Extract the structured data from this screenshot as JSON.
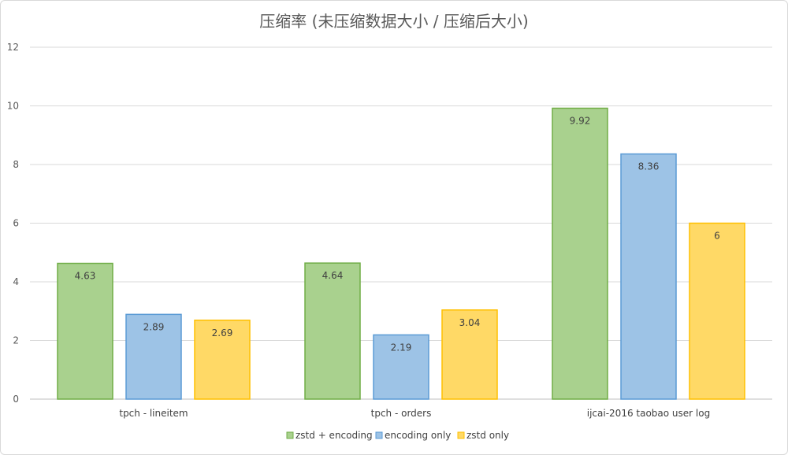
{
  "chart_data": {
    "type": "bar",
    "title": "压缩率 (未压缩数据大小 / 压缩后大小)",
    "categories": [
      "tpch - lineitem",
      "tpch - orders",
      "ijcai-2016  taobao  user log"
    ],
    "series": [
      {
        "name": "zstd + encoding",
        "values": [
          4.63,
          4.64,
          9.92
        ],
        "labels": [
          "4.63",
          "4.64",
          "9.92"
        ],
        "fill": "#a9d18e",
        "stroke": "#70ad47"
      },
      {
        "name": "encoding only",
        "values": [
          2.89,
          2.19,
          8.36
        ],
        "labels": [
          "2.89",
          "2.19",
          "8.36"
        ],
        "fill": "#9dc3e6",
        "stroke": "#5b9bd5"
      },
      {
        "name": "zstd only",
        "values": [
          2.69,
          3.04,
          6
        ],
        "labels": [
          "2.69",
          "3.04",
          "6"
        ],
        "fill": "#ffd966",
        "stroke": "#ffc000"
      }
    ],
    "ylim": [
      0,
      12
    ],
    "yticks": [
      "0",
      "2",
      "4",
      "6",
      "8",
      "10",
      "12"
    ],
    "grid": true,
    "legend_position": "bottom"
  }
}
